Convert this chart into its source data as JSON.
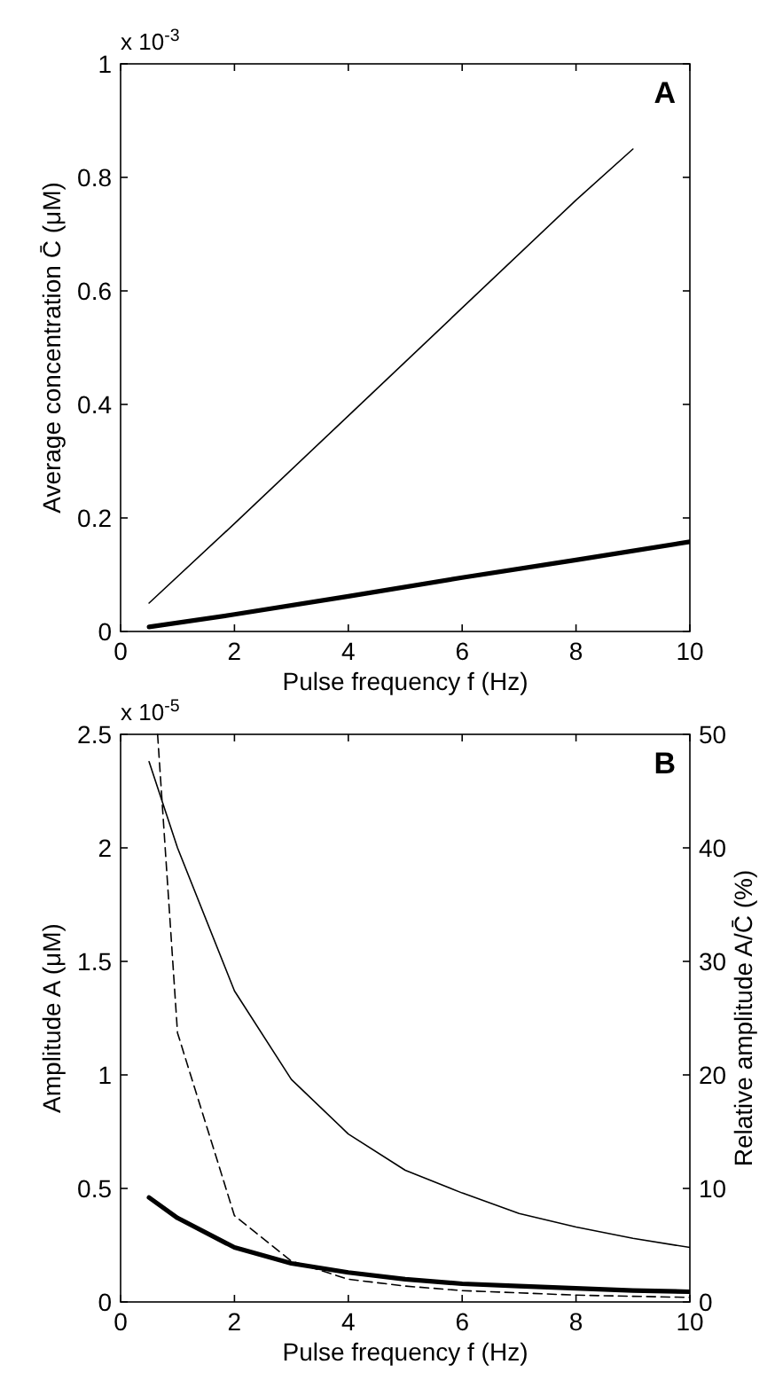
{
  "chart_data": [
    {
      "type": "line",
      "xlabel": "Pulse frequency f (Hz)",
      "ylabel": "Average concentration C̄ (μM)",
      "annotations": [
        "x 10$^{-3}$",
        "A"
      ],
      "xlim": [
        0,
        10
      ],
      "xticks": [
        0,
        2,
        4,
        6,
        8,
        10
      ],
      "ylim": [
        0,
        1
      ],
      "yticks": [
        0,
        0.2,
        0.4,
        0.6,
        0.8,
        1
      ],
      "marker": "none",
      "line_style": "solid",
      "series": [
        {
          "color": "#000000",
          "x": [
            0.5,
            2,
            4,
            6,
            8,
            9
          ],
          "values": [
            0.05,
            0.19,
            0.38,
            0.57,
            0.76,
            0.85
          ]
        },
        {
          "color": "#000000",
          "x": [
            0.5,
            2,
            4,
            6,
            8,
            10
          ],
          "values": [
            0.008,
            0.03,
            0.062,
            0.095,
            0.126,
            0.158
          ]
        }
      ]
    },
    {
      "type": "line",
      "xlabel": "Pulse frequency f (Hz)",
      "ylabel": "Amplitude A (μM)",
      "y2label": "Relative amplitude A/C̄ (%)",
      "annotations": [
        "x 10$^{-5}$",
        "B"
      ],
      "xlim": [
        0,
        10
      ],
      "xticks": [
        0,
        2,
        4,
        6,
        8,
        10
      ],
      "ylim": [
        0,
        2.5
      ],
      "yticks": [
        0,
        0.5,
        1,
        1.5,
        2,
        2.5
      ],
      "y2lim": [
        0,
        50
      ],
      "y2ticks": [
        0,
        10,
        20,
        30,
        40,
        50
      ],
      "marker": "none",
      "line_style": "solid",
      "series": [
        {
          "color": "#000000",
          "x": [
            0.5,
            1,
            2,
            3,
            4,
            5,
            6,
            7,
            8,
            9,
            10
          ],
          "values": [
            2.38,
            2.0,
            1.37,
            0.98,
            0.74,
            0.58,
            0.48,
            0.39,
            0.33,
            0.28,
            0.24
          ]
        },
        {
          "color": "#000000",
          "x": [
            0.5,
            1,
            2,
            3,
            4,
            5,
            6,
            7,
            8,
            9,
            10
          ],
          "values": [
            0.46,
            0.37,
            0.24,
            0.17,
            0.13,
            0.1,
            0.08,
            0.07,
            0.06,
            0.05,
            0.045
          ]
        },
        {
          "color": "#000000",
          "axis": "y2",
          "line_style": "dashed",
          "x": [
            0.65,
            1,
            2,
            3,
            4,
            5,
            6,
            8,
            10
          ],
          "values": [
            50,
            23.7,
            7.6,
            3.6,
            2.0,
            1.4,
            1.0,
            0.6,
            0.4
          ]
        }
      ]
    }
  ]
}
